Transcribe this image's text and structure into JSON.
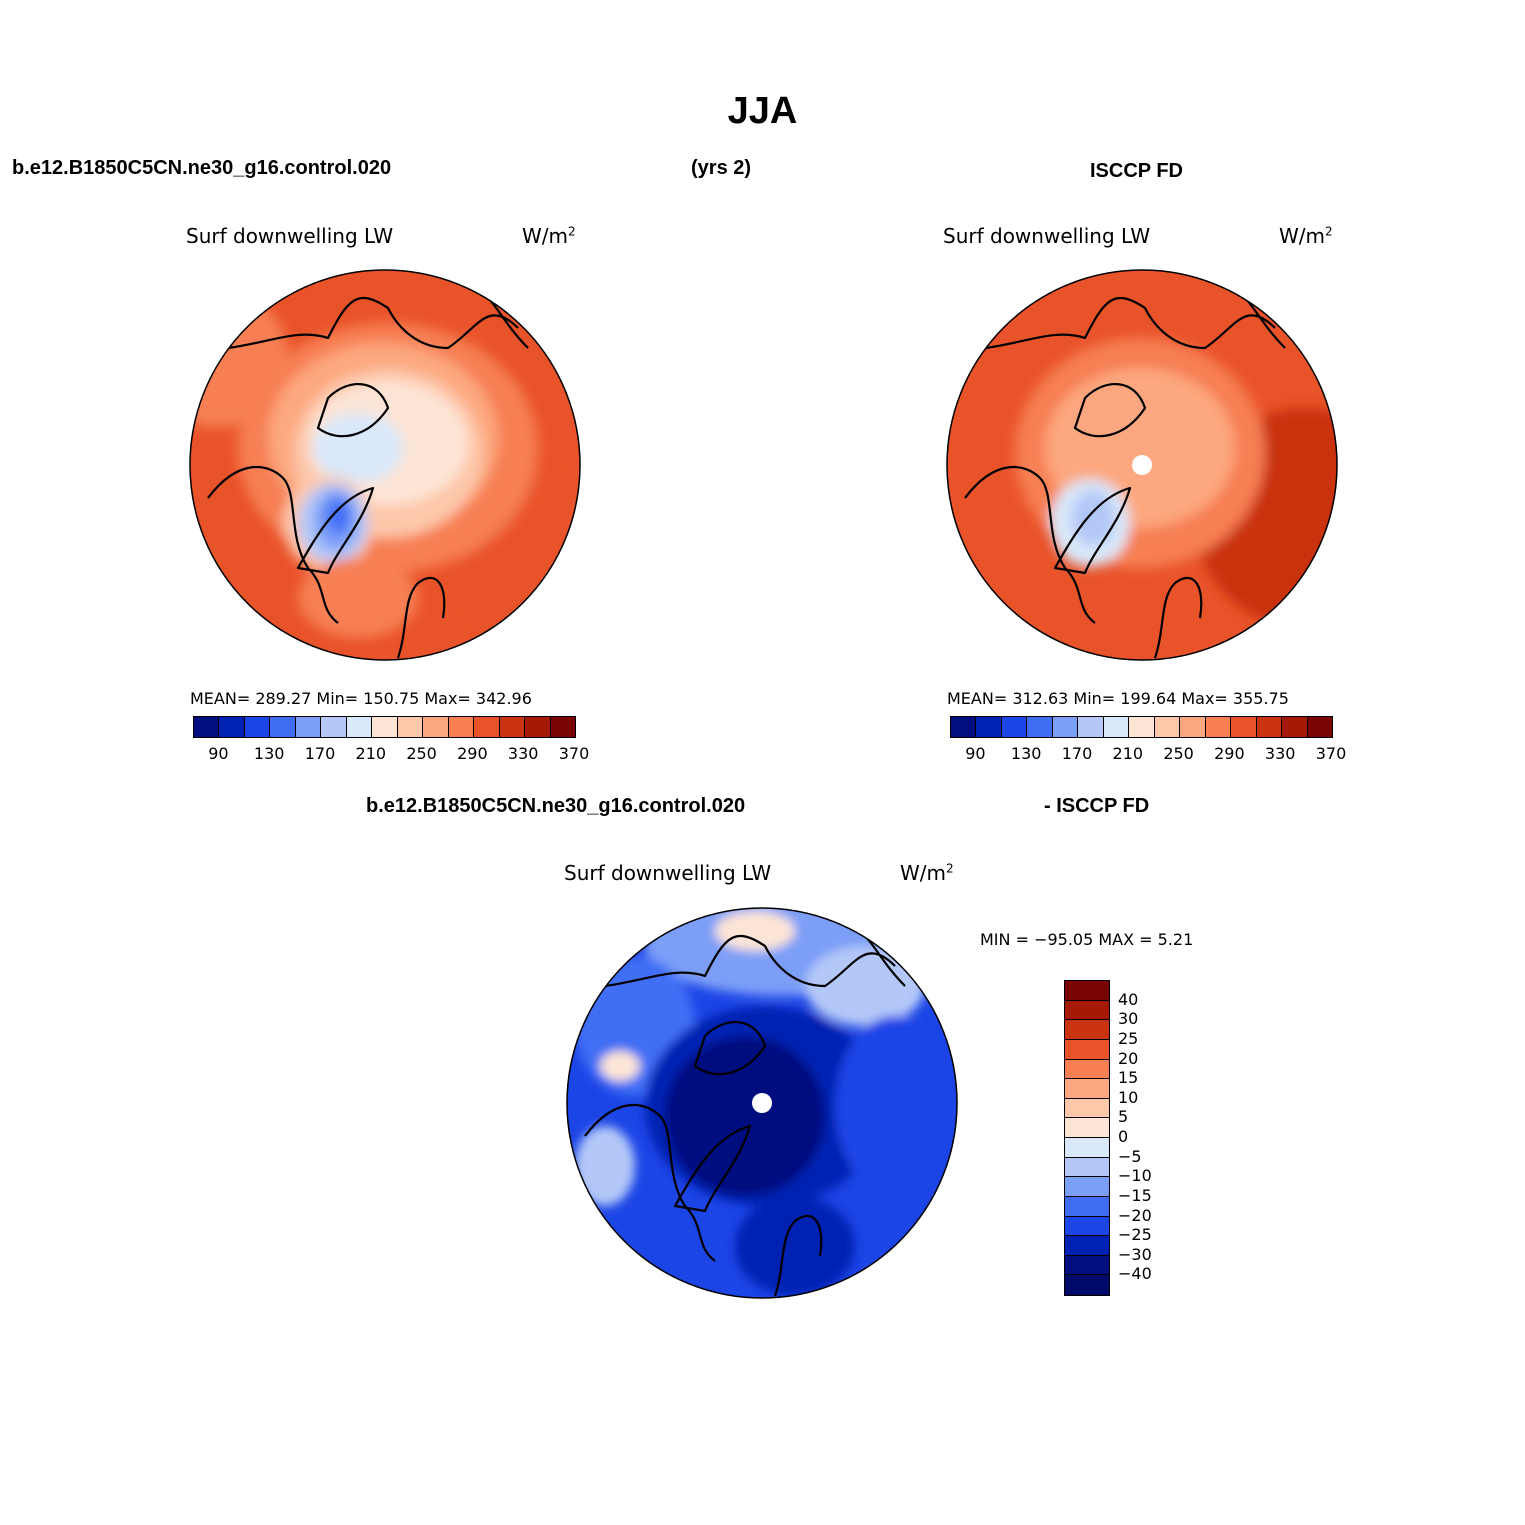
{
  "title": "JJA",
  "header": {
    "case_name": "b.e12.B1850C5CN.ne30_g16.control.020",
    "years": "(yrs 2)",
    "obs_name": "ISCCP FD",
    "diff_case_name": "b.e12.B1850C5CN.ne30_g16.control.020",
    "diff_obs_name": "- ISCCP FD"
  },
  "panels": {
    "model": {
      "label": "Surf downwelling LW",
      "units": "W/m",
      "units_sup": "2",
      "stats": "MEAN= 289.27   Min= 150.75   Max= 342.96"
    },
    "obs": {
      "label": "Surf downwelling LW",
      "units": "W/m",
      "units_sup": "2",
      "stats": "MEAN= 312.63   Min= 199.64   Max= 355.75"
    },
    "diff": {
      "label": "Surf downwelling LW",
      "units": "W/m",
      "units_sup": "2",
      "stats": "MIN = −95.05 MAX =    5.21"
    }
  },
  "colorbar_main": {
    "ticks": [
      "90",
      "130",
      "170",
      "210",
      "250",
      "290",
      "330",
      "370"
    ],
    "colors": [
      "#000e7f",
      "#0022b3",
      "#1c45e6",
      "#3f6ef5",
      "#7b9ef7",
      "#b3c8f8",
      "#d9e8fa",
      "#fde5d6",
      "#fdc7aa",
      "#fca77f",
      "#f77f52",
      "#e9532a",
      "#c9330f",
      "#a41a06",
      "#7a0403"
    ]
  },
  "colorbar_diff": {
    "ticks": [
      "40",
      "30",
      "25",
      "20",
      "15",
      "10",
      "5",
      "0",
      "−5",
      "−10",
      "−15",
      "−20",
      "−25",
      "−30",
      "−40"
    ],
    "colors": [
      "#7a0403",
      "#a41a06",
      "#c9330f",
      "#e9532a",
      "#f77f52",
      "#fca77f",
      "#fdc7aa",
      "#fde5d6",
      "#d9e8fa",
      "#b3c8f8",
      "#7b9ef7",
      "#3f6ef5",
      "#1c45e6",
      "#0022b3",
      "#000e7f",
      "#000a6a"
    ]
  }
}
